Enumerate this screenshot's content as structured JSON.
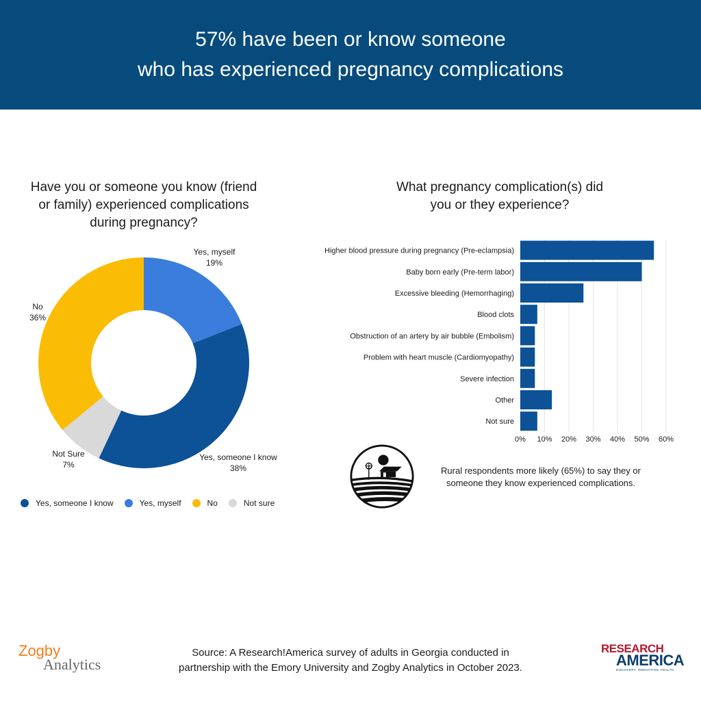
{
  "header": {
    "line1": "57% have been or know someone",
    "line2": "who has experienced pregnancy complications"
  },
  "chart_data": [
    {
      "type": "pie",
      "variant": "donut",
      "title_lines": [
        "Have you or someone you know (friend",
        "or family) experienced complications",
        "during pregnancy?"
      ],
      "slices": [
        {
          "key": "myself",
          "label": "Yes, myself",
          "value": 19,
          "value_label": "19%",
          "color": "#3b7ddd"
        },
        {
          "key": "someone",
          "label": "Yes, someone I know",
          "value": 38,
          "value_label": "38%",
          "color": "#0d5196"
        },
        {
          "key": "notsure",
          "label": "Not Sure",
          "value": 7,
          "value_label": "7%",
          "color": "#d9d9d9"
        },
        {
          "key": "no",
          "label": "No",
          "value": 36,
          "value_label": "36%",
          "color": "#fbbc05"
        }
      ],
      "legend": {
        "placement": "bottom",
        "items": [
          {
            "label": "Yes, someone I know",
            "color": "#0d5196"
          },
          {
            "label": "Yes, myself",
            "color": "#3b7ddd"
          },
          {
            "label": "No",
            "color": "#fbbc05"
          },
          {
            "label": "Not sure",
            "color": "#d9d9d9"
          }
        ]
      }
    },
    {
      "type": "bar",
      "orientation": "horizontal",
      "title_lines": [
        "What pregnancy complication(s) did",
        "you or they experience?"
      ],
      "categories": [
        "Higher blood pressure during pregnancy (Pre-eclampsia)",
        "Baby born early (Pre-term labor)",
        "Excessive bleeding (Hemorrhaging)",
        "Blood clots",
        "Obstruction of an artery by air bubble (Embolism)",
        "Problem with heart muscle (Cardiomyopathy)",
        "Severe infection",
        "Other",
        "Not sure"
      ],
      "values": [
        55,
        50,
        26,
        7,
        6,
        6,
        6,
        13,
        7
      ],
      "xlim": [
        0,
        60
      ],
      "xticks": [
        0,
        10,
        20,
        30,
        40,
        50,
        60
      ],
      "xtick_labels": [
        "0%",
        "10%",
        "20%",
        "30%",
        "40%",
        "50%",
        "60%"
      ],
      "grid": true,
      "color": "#0d5196"
    }
  ],
  "rural_note": {
    "icon": "farm-icon",
    "line1": "Rural respondents more likely (65%) to say they or",
    "line2": "someone they know experienced complications."
  },
  "source": {
    "line1": "Source: A Research!America survey of adults in Georgia conducted in",
    "line2": "partnership with the Emory University and Zogby Analytics in October 2023."
  },
  "logos": {
    "zogby_line1": "Zogby",
    "zogby_line2": "Analytics",
    "ra_line1": "RESEARCH",
    "ra_line2": "AMERICA",
    "ra_tagline": "DISCOVERY. INNOVATION. HEALTH."
  }
}
